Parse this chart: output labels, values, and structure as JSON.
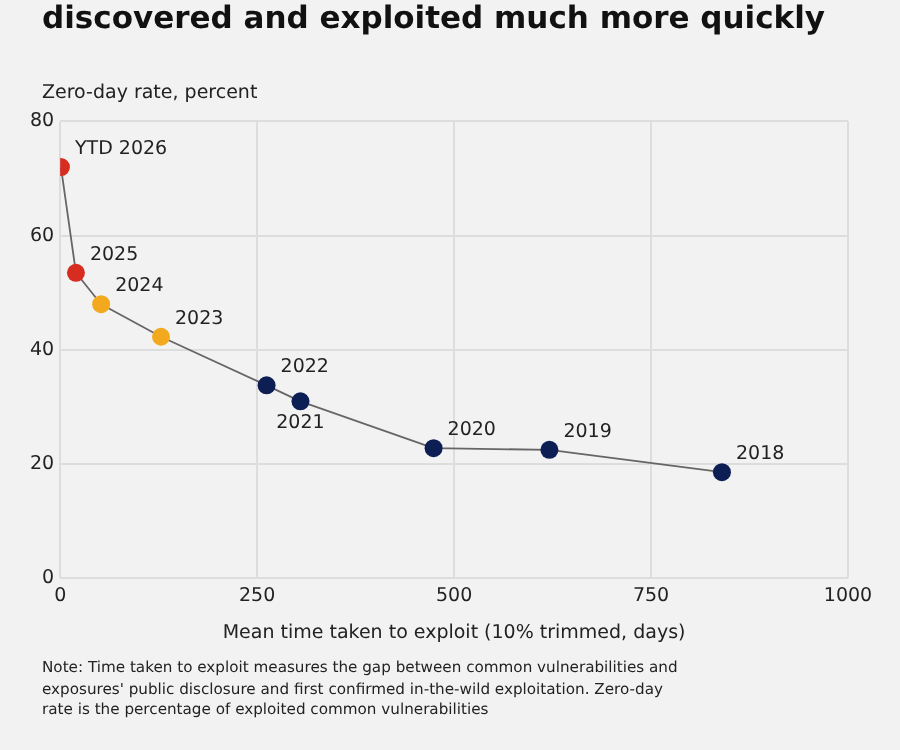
{
  "chart_data": {
    "type": "line",
    "title": "discovered and exploited much more quickly",
    "ylabel": "Zero-day rate, percent",
    "xlabel": "Mean time taken to exploit (10% trimmed, days)",
    "series": [
      {
        "color": "#666666",
        "x": [
          1,
          20,
          52,
          128,
          262,
          305,
          474,
          621,
          840
        ],
        "values": [
          72,
          53.5,
          48,
          42.3,
          33.8,
          31,
          22.8,
          22.5,
          18.6
        ],
        "colors": [
          "#d62d20",
          "#d62d20",
          "#f2a91e",
          "#f2a91e",
          "#0d1e55",
          "#0d1e55",
          "#0d1e55",
          "#0d1e55",
          "#0d1e55"
        ]
      }
    ],
    "xlim": [
      0,
      1000
    ],
    "xticks": [
      0,
      250,
      500,
      750,
      1000
    ],
    "ylim": [
      0,
      80
    ],
    "yticks": [
      0,
      20,
      40,
      60,
      80
    ],
    "grid": true,
    "legend": false,
    "marker": "circle",
    "line_style": "solid",
    "annotations": [
      {
        "text": "YTD 2026",
        "x": 1,
        "y": 72
      },
      {
        "text": "2025",
        "x": 20,
        "y": 53.5
      },
      {
        "text": "2024",
        "x": 52,
        "y": 48
      },
      {
        "text": "2023",
        "x": 128,
        "y": 42.3
      },
      {
        "text": "2022",
        "x": 262,
        "y": 33.8
      },
      {
        "text": "2021",
        "x": 305,
        "y": 31
      },
      {
        "text": "2020",
        "x": 474,
        "y": 22.8
      },
      {
        "text": "2019",
        "x": 621,
        "y": 22.5
      },
      {
        "text": "2018",
        "x": 840,
        "y": 18.6
      },
      "Note: Time taken to exploit measures the gap between common vulnerabilities and exposures' public disclosure and first confirmed in-the-wild exploitation. Zero-day rate is the percentage of exploited common vulnerabilities"
    ]
  }
}
